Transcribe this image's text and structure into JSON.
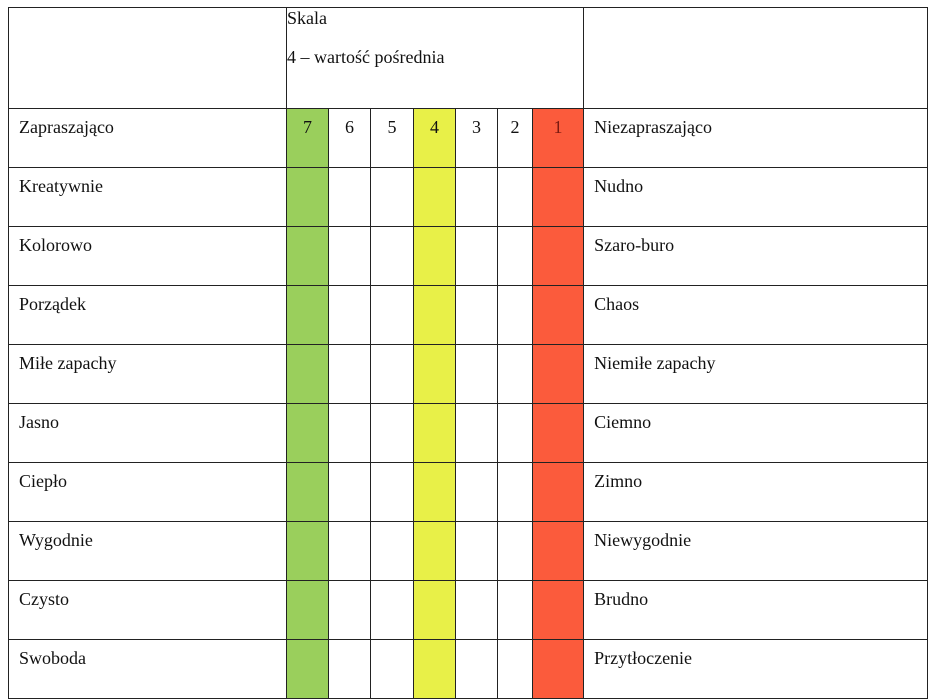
{
  "header": {
    "scale_title": "Skala",
    "scale_note": "4 – wartość pośrednia"
  },
  "scale": {
    "values": [
      "7",
      "6",
      "5",
      "4",
      "3",
      "2",
      "1"
    ],
    "colors": [
      "#9ACF5C",
      "#FFFFFF",
      "#FFFFFF",
      "#E8F048",
      "#FFFFFF",
      "#FFFFFF",
      "#FB5B3C"
    ],
    "value_colors": [
      "#111111",
      "#111111",
      "#111111",
      "#111111",
      "#111111",
      "#111111",
      "#7A1A10"
    ]
  },
  "rows": [
    {
      "left": "Zapraszająco",
      "right": "Niezapraszająco"
    },
    {
      "left": "Kreatywnie",
      "right": "Nudno"
    },
    {
      "left": "Kolorowo",
      "right": "Szaro-buro"
    },
    {
      "left": "Porządek",
      "right": "Chaos"
    },
    {
      "left": "Miłe zapachy",
      "right": "Niemiłe zapachy"
    },
    {
      "left": "Jasno",
      "right": "Ciemno"
    },
    {
      "left": "Ciepło",
      "right": "Zimno"
    },
    {
      "left": "Wygodnie",
      "right": "Niewygodnie"
    },
    {
      "left": "Czysto",
      "right": "Brudno"
    },
    {
      "left": "Swoboda",
      "right": "Przytłoczenie"
    }
  ]
}
